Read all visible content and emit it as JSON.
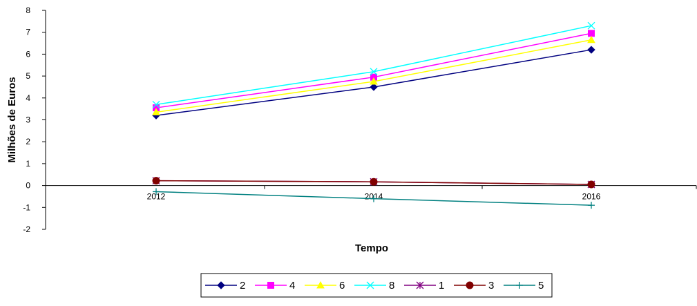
{
  "chart_data": {
    "type": "line",
    "xlabel": "Tempo",
    "ylabel": "Milhões de Euros",
    "categories": [
      "2012",
      "2014",
      "2016"
    ],
    "ylim": [
      -2,
      8
    ],
    "yticks": [
      "-2",
      "-1",
      "0",
      "1",
      "2",
      "3",
      "4",
      "5",
      "6",
      "7",
      "8"
    ],
    "grid": false,
    "legend_position": "bottom",
    "series": [
      {
        "name": "2",
        "color": "#000080",
        "marker": "diamond",
        "values": [
          3.2,
          4.5,
          6.2
        ]
      },
      {
        "name": "4",
        "color": "#FF00FF",
        "marker": "square",
        "values": [
          3.55,
          4.95,
          6.95
        ]
      },
      {
        "name": "6",
        "color": "#FFFF00",
        "marker": "triangle",
        "values": [
          3.35,
          4.75,
          6.65
        ]
      },
      {
        "name": "8",
        "color": "#00FFFF",
        "marker": "x",
        "values": [
          3.7,
          5.2,
          7.3
        ]
      },
      {
        "name": "1",
        "color": "#800080",
        "marker": "star",
        "values": [
          0.22,
          0.17,
          0.05
        ]
      },
      {
        "name": "3",
        "color": "#800000",
        "marker": "circle",
        "values": [
          0.22,
          0.17,
          0.05
        ]
      },
      {
        "name": "5",
        "color": "#008080",
        "marker": "plus",
        "values": [
          -0.28,
          -0.6,
          -0.9
        ]
      }
    ]
  }
}
